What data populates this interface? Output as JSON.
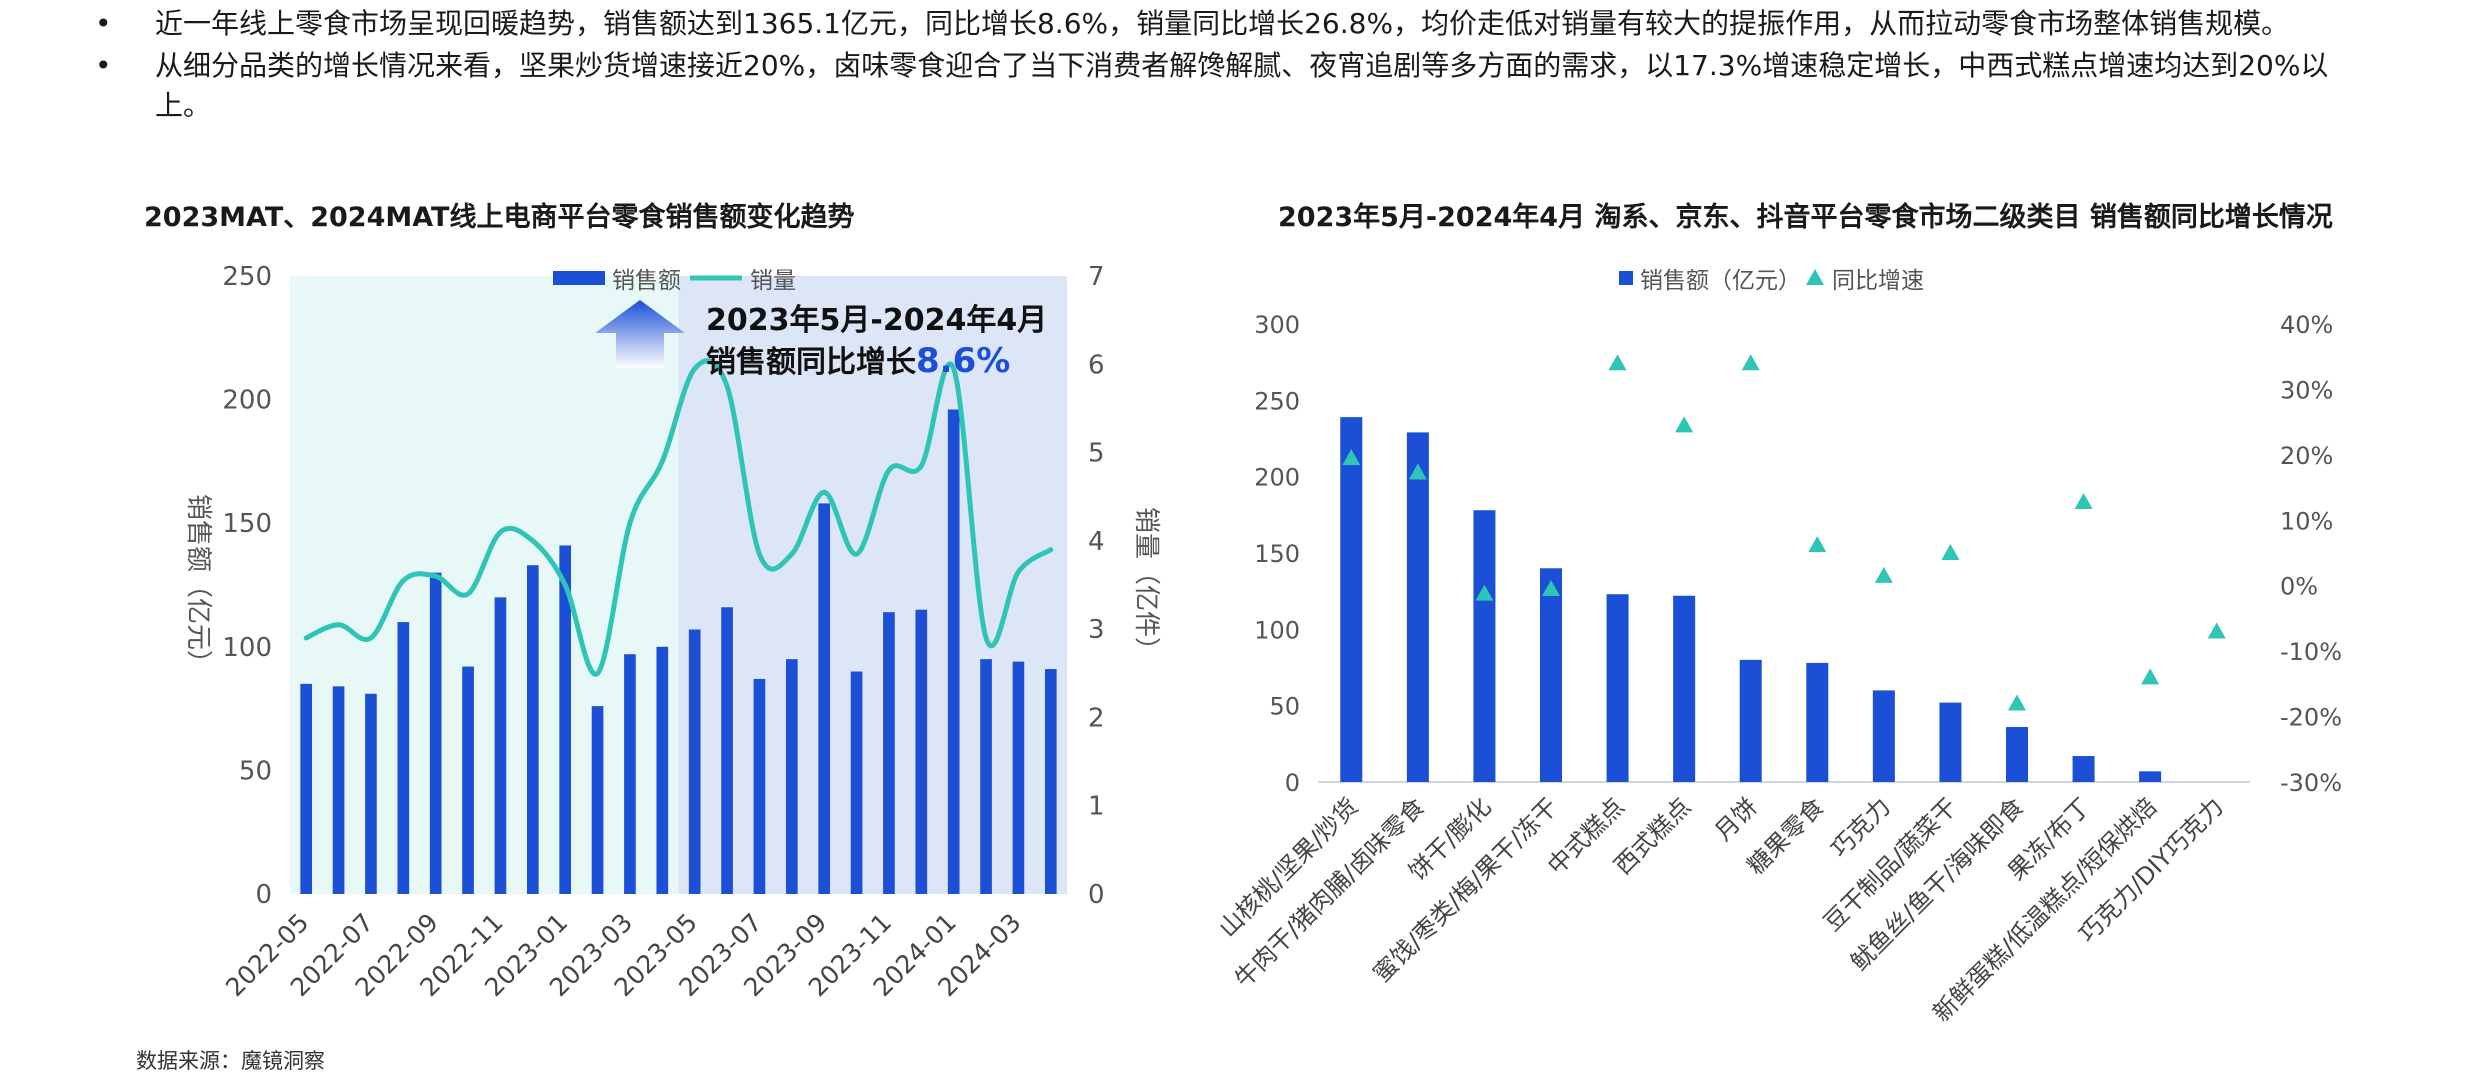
{
  "bullets": [
    {
      "marker": "•",
      "text": "近一年线上零食市场呈现回暖趋势，销售额达到1365.1亿元，同比增长8.6%，销量同比增长26.8%，均价走低对销量有较大的提振作用，从而拉动零食市场整体销售规模。"
    },
    {
      "marker": "•",
      "text": "从细分品类的增长情况来看，坚果炒货增速接近20%，卤味零食迎合了当下消费者解馋解腻、夜宵追剧等多方面的需求，以17.3%增速稳定增长，中西式糕点增速均达到20%以上。"
    }
  ],
  "source": "数据来源：魔镜洞察",
  "colors": {
    "bar": "#1a4fd6",
    "line": "#2ec4b6",
    "shade_left": "#e8f8f6",
    "shade_right": "#dde6f7",
    "highlight": "#1a4fd6"
  },
  "chart_data": [
    {
      "type": "bar",
      "title": "2023MAT、2024MAT线上电商平台零食销售额变化趋势",
      "ylabel": "销售额（亿元）",
      "y2label": "销量（亿件）",
      "ylim": [
        0,
        250
      ],
      "y2lim": [
        0,
        7
      ],
      "yticks": [
        0,
        50,
        100,
        150,
        200,
        250
      ],
      "y2ticks": [
        0,
        1,
        2,
        3,
        4,
        5,
        6,
        7
      ],
      "x": [
        "2022-05",
        "2022-06",
        "2022-07",
        "2022-08",
        "2022-09",
        "2022-10",
        "2022-11",
        "2022-12",
        "2023-01",
        "2023-02",
        "2023-03",
        "2023-04",
        "2023-05",
        "2023-06",
        "2023-07",
        "2023-08",
        "2023-09",
        "2023-10",
        "2023-11",
        "2023-12",
        "2024-01",
        "2024-02",
        "2024-03",
        "2024-04"
      ],
      "xtick_labels": [
        "2022-05",
        "2022-07",
        "2022-09",
        "2022-11",
        "2023-01",
        "2023-03",
        "2023-05",
        "2023-07",
        "2023-09",
        "2023-11",
        "2024-01",
        "2024-03"
      ],
      "series": [
        {
          "name": "销售额",
          "type": "bar",
          "axis": "left",
          "values": [
            85,
            84,
            81,
            110,
            130,
            92,
            120,
            133,
            141,
            76,
            97,
            100,
            107,
            116,
            87,
            95,
            158,
            90,
            114,
            115,
            196,
            95,
            94,
            91
          ]
        },
        {
          "name": "销量",
          "type": "line",
          "axis": "right",
          "values": [
            2.9,
            3.05,
            2.9,
            3.55,
            3.6,
            3.4,
            4.1,
            4.0,
            3.5,
            2.5,
            4.2,
            4.9,
            5.95,
            5.75,
            3.85,
            3.85,
            4.55,
            3.85,
            4.8,
            4.85,
            5.95,
            2.9,
            3.65,
            3.9
          ]
        }
      ],
      "shaded_periods": [
        "2022-05 – 2023-04",
        "2023-05 – 2024-04"
      ],
      "annotation": {
        "line1": "2023年5月-2024年4月",
        "line2_prefix": "销售额同比增长",
        "line2_value": "8.6%"
      }
    },
    {
      "type": "bar",
      "title": "2023年5月-2024年4月 淘系、京东、抖音平台零食市场二级类目 销售额同比增长情况",
      "ylim": [
        0,
        300
      ],
      "y2lim": [
        -30,
        40
      ],
      "yticks": [
        0,
        50,
        100,
        150,
        200,
        250,
        300
      ],
      "y2ticks": [
        "-30%",
        "-20%",
        "-10%",
        "0%",
        "10%",
        "20%",
        "30%",
        "40%"
      ],
      "categories": [
        "山核桃/坚果/炒货",
        "牛肉干/猪肉脯/卤味零食",
        "饼干/膨化",
        "蜜饯/枣类/梅/果干/冻干",
        "中式糕点",
        "西式糕点",
        "月饼",
        "糖果零食",
        "巧克力",
        "豆干制品/蔬菜干",
        "鱿鱼丝/鱼干/海味即食",
        "果冻/布丁",
        "新鲜蛋糕/低温糕点/短保烘焙",
        "巧克力/DIY巧克力"
      ],
      "series": [
        {
          "name": "销售额（亿元）",
          "type": "bar",
          "axis": "left",
          "values": [
            239,
            229,
            178,
            140,
            123,
            122,
            80,
            78,
            60,
            52,
            36,
            17,
            7,
            null
          ]
        },
        {
          "name": "同比增速",
          "type": "scatter",
          "axis": "right",
          "unit": "%",
          "values": [
            19.5,
            17.3,
            -1.2,
            -0.5,
            34.0,
            24.5,
            34.0,
            6.2,
            1.5,
            5.0,
            -18.0,
            12.8,
            -14.0,
            -7.0
          ]
        }
      ]
    }
  ]
}
